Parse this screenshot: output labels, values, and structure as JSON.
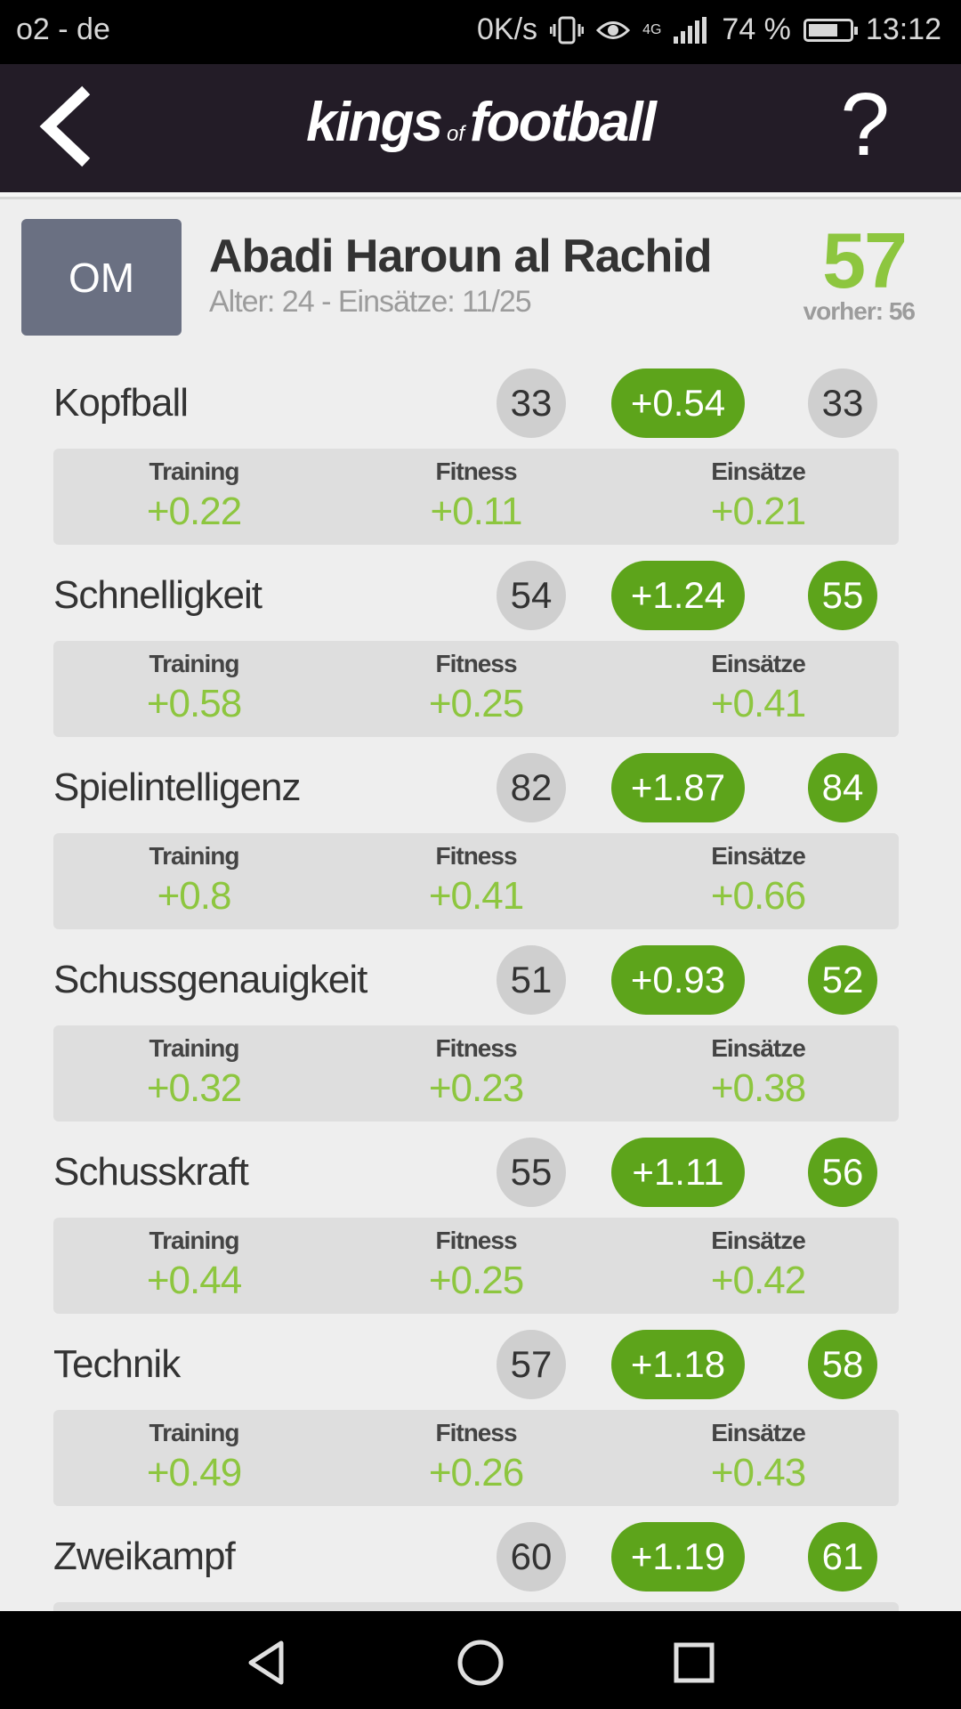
{
  "status_bar": {
    "carrier": "o2 - de",
    "speed": "0K/s",
    "network": "4G",
    "battery": "74 %",
    "battery_level": 0.74,
    "time": "13:12"
  },
  "header": {
    "logo_main_1": "kings",
    "logo_of": "of",
    "logo_main_2": "football",
    "help_label": "?"
  },
  "player": {
    "position": "OM",
    "name": "Abadi Haroun al Rachid",
    "meta": "Alter: 24 - Einsätze: 11/25",
    "rating": "57",
    "previous": "vorher: 56"
  },
  "labels": {
    "training": "Training",
    "fitness": "Fitness",
    "matches": "Einsätze"
  },
  "attributes": [
    {
      "name": "Kopfball",
      "before": "33",
      "delta": "+0.54",
      "after": "33",
      "improved": false,
      "training": "+0.22",
      "fitness": "+0.11",
      "matches": "+0.21"
    },
    {
      "name": "Schnelligkeit",
      "before": "54",
      "delta": "+1.24",
      "after": "55",
      "improved": true,
      "training": "+0.58",
      "fitness": "+0.25",
      "matches": "+0.41"
    },
    {
      "name": "Spielintelligenz",
      "before": "82",
      "delta": "+1.87",
      "after": "84",
      "improved": true,
      "training": "+0.8",
      "fitness": "+0.41",
      "matches": "+0.66"
    },
    {
      "name": "Schussgenauigkeit",
      "before": "51",
      "delta": "+0.93",
      "after": "52",
      "improved": true,
      "training": "+0.32",
      "fitness": "+0.23",
      "matches": "+0.38"
    },
    {
      "name": "Schusskraft",
      "before": "55",
      "delta": "+1.11",
      "after": "56",
      "improved": true,
      "training": "+0.44",
      "fitness": "+0.25",
      "matches": "+0.42"
    },
    {
      "name": "Technik",
      "before": "57",
      "delta": "+1.18",
      "after": "58",
      "improved": true,
      "training": "+0.49",
      "fitness": "+0.26",
      "matches": "+0.43"
    },
    {
      "name": "Zweikampf",
      "before": "60",
      "delta": "+1.19",
      "after": "61",
      "improved": true,
      "training": "",
      "fitness": "",
      "matches": ""
    }
  ],
  "colors": {
    "accent_green": "#5da41b",
    "value_green": "#8dc63f",
    "header_bg": "#231c27",
    "badge_bg": "#6a7082"
  },
  "icons": {
    "back": "chevron-left-icon",
    "help": "question-mark-icon",
    "nav_back": "triangle-back-icon",
    "nav_home": "circle-home-icon",
    "nav_recent": "square-recent-icon"
  }
}
